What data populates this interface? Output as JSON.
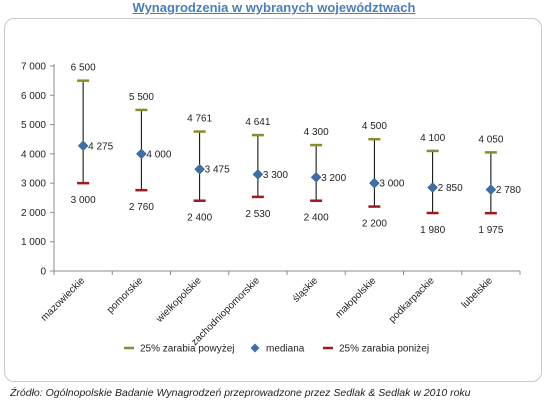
{
  "title": "Wynagrodzenia w wybranych województwach",
  "source": "Źródło: Ogólnopolskie Badanie Wynagrodzeń przeprowadzone przez Sedlak & Sedlak w 2010 roku",
  "colors": {
    "upper": "#8b8b2e",
    "median": "#3d6ea8",
    "lower": "#a0181c",
    "title": "#4a7ebb"
  },
  "chart_data": {
    "type": "high-low",
    "title": "Wynagrodzenia w wybranych województwach",
    "ylim": [
      0,
      7000
    ],
    "yticks": [
      0,
      1000,
      2000,
      3000,
      4000,
      5000,
      6000,
      7000
    ],
    "ytick_labels": [
      "0",
      "1 000",
      "2 000",
      "3 000",
      "4 000",
      "5 000",
      "6 000",
      "7 000"
    ],
    "categories": [
      "mazowieckie",
      "pomorskie",
      "wielkopolskie",
      "zachodniopomorskie",
      "śląskie",
      "małopolskie",
      "podkarpackie",
      "lubelskie"
    ],
    "series": [
      {
        "name": "25% zarabia powyżej",
        "values": [
          6500,
          5500,
          4761,
          4641,
          4300,
          4500,
          4100,
          4050
        ],
        "labels": [
          "6 500",
          "5 500",
          "4 761",
          "4 641",
          "4 300",
          "4 500",
          "4 100",
          "4 050"
        ]
      },
      {
        "name": "mediana",
        "values": [
          4275,
          4000,
          3475,
          3300,
          3200,
          3000,
          2850,
          2780
        ],
        "labels": [
          "4 275",
          "4 000",
          "3 475",
          "3 300",
          "3 200",
          "3 000",
          "2 850",
          "2 780"
        ]
      },
      {
        "name": "25% zarabia poniżej",
        "values": [
          3000,
          2760,
          2400,
          2530,
          2400,
          2200,
          1980,
          1975
        ],
        "labels": [
          "3 000",
          "2 760",
          "2 400",
          "2 530",
          "2 400",
          "2 200",
          "1 980",
          "1 975"
        ]
      }
    ],
    "legend": "bottom",
    "grid": false
  }
}
